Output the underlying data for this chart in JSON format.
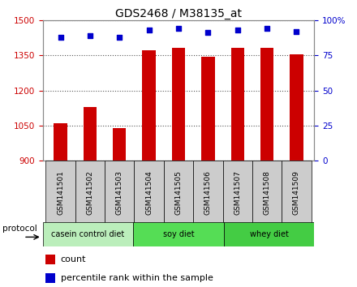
{
  "title": "GDS2468 / M38135_at",
  "samples": [
    "GSM141501",
    "GSM141502",
    "GSM141503",
    "GSM141504",
    "GSM141505",
    "GSM141506",
    "GSM141507",
    "GSM141508",
    "GSM141509"
  ],
  "counts": [
    1060,
    1130,
    1040,
    1370,
    1380,
    1345,
    1380,
    1380,
    1355
  ],
  "percentile_ranks": [
    88,
    89,
    88,
    93,
    94,
    91,
    93,
    94,
    92
  ],
  "ylim_left": [
    900,
    1500
  ],
  "ylim_right": [
    0,
    100
  ],
  "yticks_left": [
    900,
    1050,
    1200,
    1350,
    1500
  ],
  "yticks_right": [
    0,
    25,
    50,
    75,
    100
  ],
  "bar_color": "#cc0000",
  "dot_color": "#0000cc",
  "bar_bottom": 900,
  "groups": [
    {
      "label": "casein control diet",
      "start": 0,
      "end": 3,
      "color": "#bbeebb"
    },
    {
      "label": "soy diet",
      "start": 3,
      "end": 6,
      "color": "#55dd55"
    },
    {
      "label": "whey diet",
      "start": 6,
      "end": 9,
      "color": "#44cc44"
    }
  ],
  "protocol_label": "protocol",
  "legend_count_label": "count",
  "legend_pct_label": "percentile rank within the sample",
  "grid_color": "#555555",
  "tick_color_left": "#cc0000",
  "tick_color_right": "#0000cc",
  "background_xtick": "#cccccc",
  "bar_width": 0.45
}
